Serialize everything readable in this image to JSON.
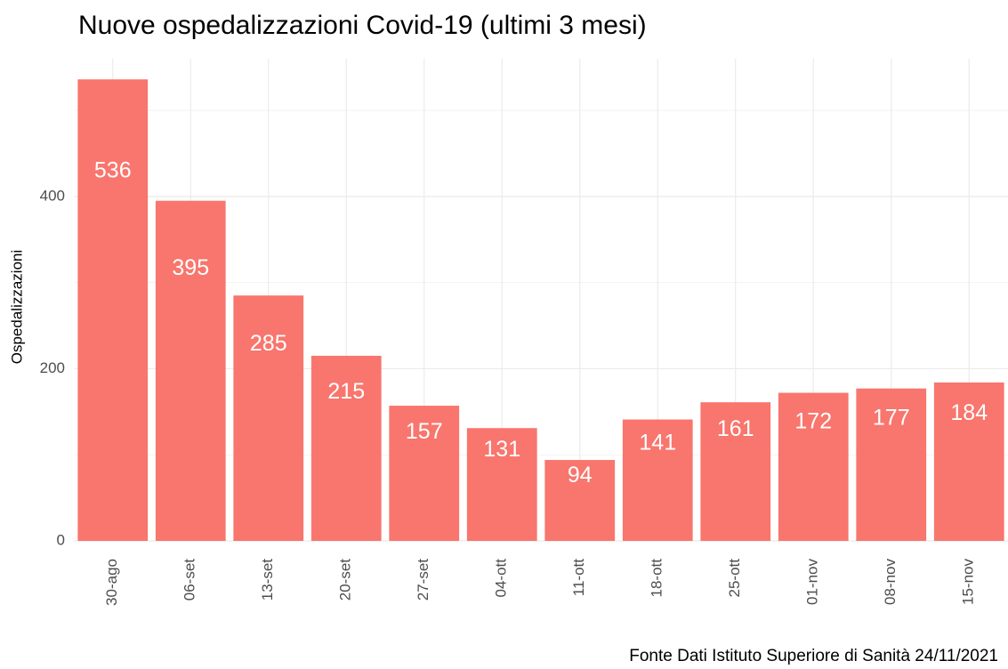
{
  "chart_data": {
    "type": "bar",
    "title": "Nuove ospedalizzazioni Covid-19 (ultimi 3 mesi)",
    "y_label": "Ospedalizzazioni",
    "caption": "Fonte Dati Istituto Superiore di Sanità 24/11/2021",
    "categories": [
      "30-ago",
      "06-set",
      "13-set",
      "20-set",
      "27-set",
      "04-ott",
      "11-ott",
      "18-ott",
      "25-ott",
      "01-nov",
      "08-nov",
      "15-nov"
    ],
    "values": [
      536,
      395,
      285,
      215,
      157,
      131,
      94,
      141,
      161,
      172,
      177,
      184
    ],
    "color": "#f8766d",
    "ylim": [
      0,
      560
    ],
    "yticks": [
      0,
      200,
      400
    ],
    "minor_yticks": [
      100,
      300,
      500
    ],
    "grid": true
  }
}
